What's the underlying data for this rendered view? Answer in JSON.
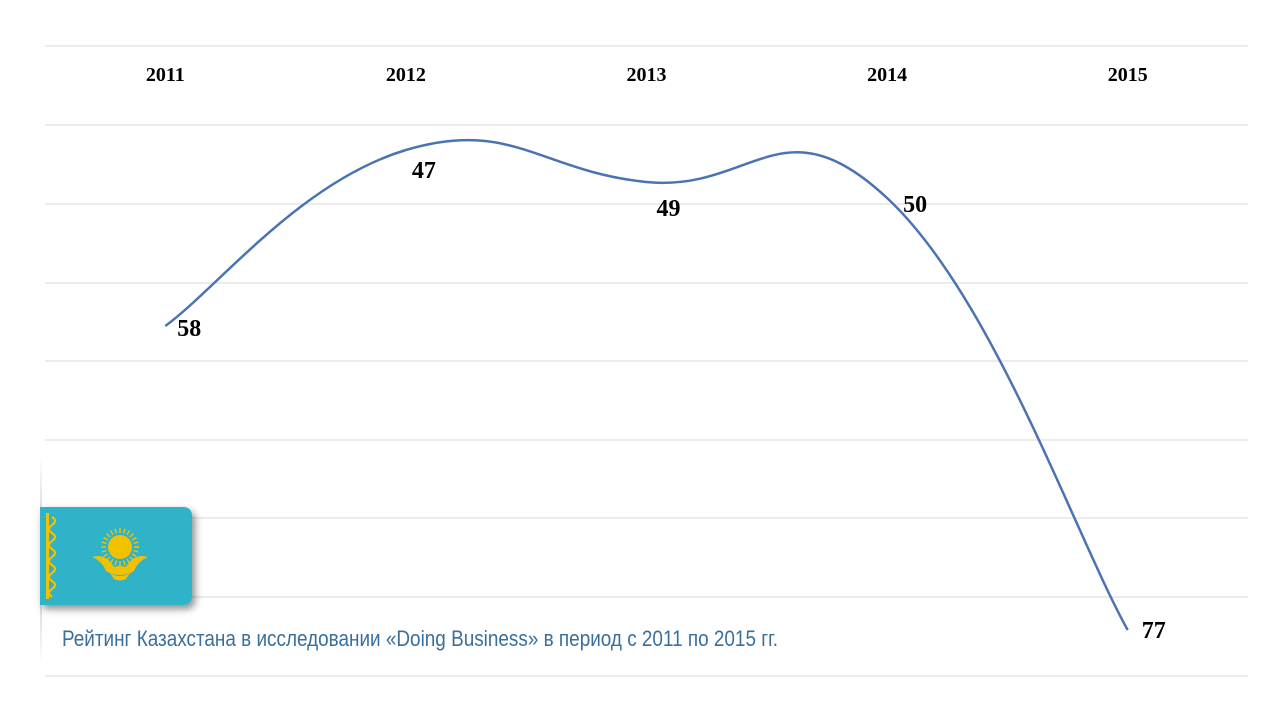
{
  "caption": "Рейтинг Казахстана в исследовании «Doing Business» в период с 2011 по 2015 гг.",
  "colors": {
    "line": "#4a73b3",
    "grid": "#d9d9d9",
    "caption": "#3a6f9c",
    "flag_blue": "#2eb3c9",
    "flag_gold": "#f2c200"
  },
  "flag": {
    "icon": "kazakhstan-flag-icon"
  },
  "chart_data": {
    "type": "line",
    "categories": [
      "2011",
      "2012",
      "2013",
      "2014",
      "2015"
    ],
    "values": [
      58,
      47,
      49,
      50,
      77
    ],
    "data_labels": [
      "58",
      "47",
      "49",
      "50",
      "77"
    ],
    "title": "",
    "xlabel": "",
    "ylabel": "",
    "x_axis_position": "top",
    "y_axis_reversed": true,
    "smoothed": true,
    "grid": true,
    "legend": "none"
  }
}
